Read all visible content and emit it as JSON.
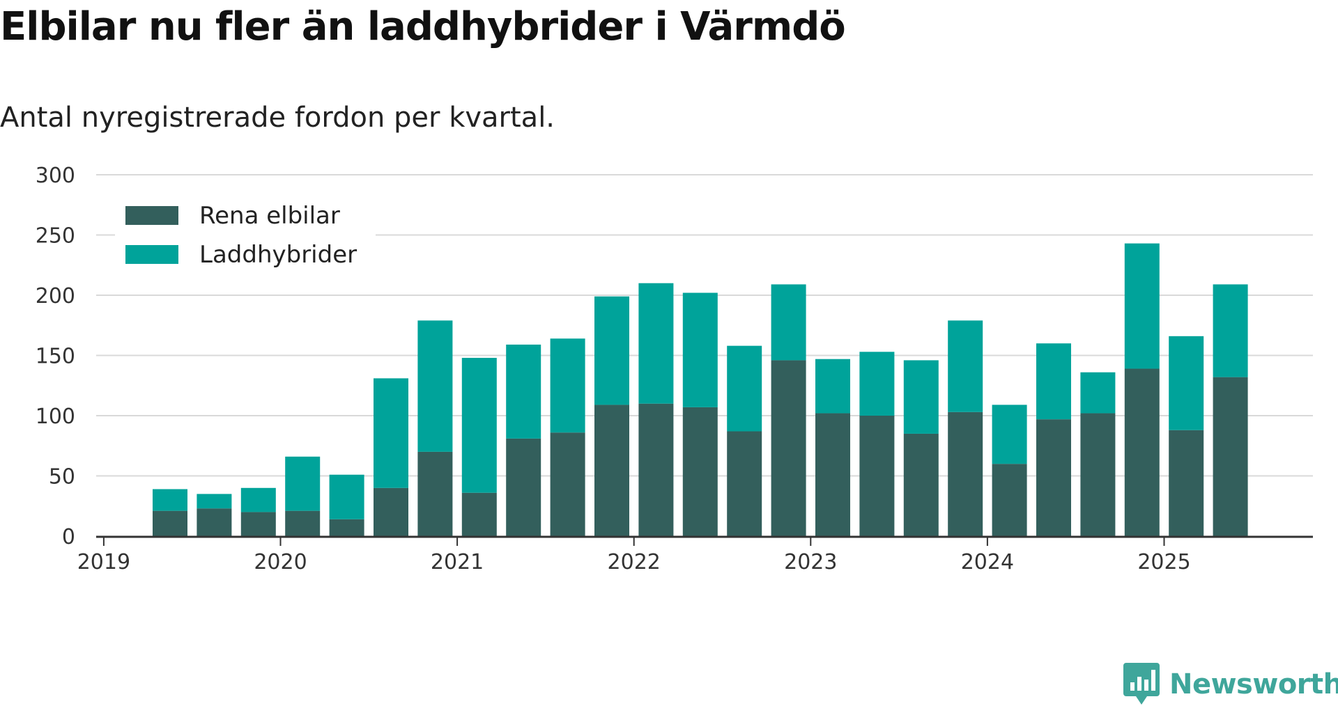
{
  "title": "Elbilar nu fler än laddhybrider i Värmdö",
  "subtitle": "Antal nyregistrerade fordon per kvartal.",
  "brand": {
    "name": "Newsworthy",
    "color": "#3fa69b",
    "icon": "newsworthy-logo-icon"
  },
  "colors": {
    "rena": "#335f5c",
    "ladd": "#00a39a",
    "grid": "#d9d9d9",
    "axis": "#333333"
  },
  "chart_data": {
    "type": "bar",
    "stacked": true,
    "categories": [
      "2019 Q2",
      "2019 Q3",
      "2019 Q4",
      "2020 Q1",
      "2020 Q2",
      "2020 Q3",
      "2020 Q4",
      "2021 Q1",
      "2021 Q2",
      "2021 Q3",
      "2021 Q4",
      "2022 Q1",
      "2022 Q2",
      "2022 Q3",
      "2022 Q4",
      "2023 Q1",
      "2023 Q2",
      "2023 Q3",
      "2023 Q4",
      "2024 Q1",
      "2024 Q2",
      "2024 Q3",
      "2024 Q4",
      "2025 Q1",
      "2025 Q2"
    ],
    "series": [
      {
        "name": "Rena elbilar",
        "values": [
          21,
          23,
          20,
          21,
          14,
          40,
          70,
          36,
          81,
          86,
          109,
          110,
          107,
          87,
          146,
          102,
          100,
          85,
          103,
          60,
          97,
          102,
          139,
          88,
          132
        ]
      },
      {
        "name": "Laddhybrider",
        "values": [
          18,
          12,
          20,
          45,
          37,
          91,
          109,
          112,
          78,
          78,
          90,
          100,
          95,
          71,
          63,
          45,
          53,
          61,
          76,
          49,
          63,
          34,
          104,
          78,
          77
        ]
      }
    ],
    "x_ticks": [
      "2019",
      "2020",
      "2021",
      "2022",
      "2023",
      "2024",
      "2025"
    ],
    "y_ticks": [
      "0",
      "50",
      "100",
      "150",
      "200",
      "250",
      "300"
    ],
    "ylim": [
      0,
      300
    ],
    "grid": true,
    "legend_position": "top-left"
  }
}
